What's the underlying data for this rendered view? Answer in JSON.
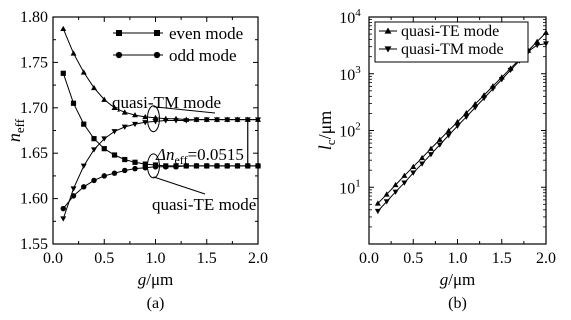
{
  "chart_data": [
    {
      "type": "line",
      "panel_label": "(a)",
      "ylabel": "n",
      "ylabel_sub": "eff",
      "xlabel": "g/μm",
      "xlim": [
        0.0,
        2.0
      ],
      "ylim": [
        1.55,
        1.8
      ],
      "xticks": [
        "0.0",
        "0.5",
        "1.0",
        "1.5",
        "2.0"
      ],
      "yticks": [
        "1.55",
        "1.60",
        "1.65",
        "1.70",
        "1.75",
        "1.80"
      ],
      "x": [
        0.1,
        0.2,
        0.3,
        0.4,
        0.5,
        0.6,
        0.7,
        0.8,
        0.9,
        1.0,
        1.1,
        1.2,
        1.3,
        1.4,
        1.5,
        1.6,
        1.7,
        1.8,
        1.9,
        2.0
      ],
      "legend": {
        "position": "top-right",
        "entries": [
          {
            "name": "even mode",
            "marker": "square"
          },
          {
            "name": "odd mode",
            "marker": "circle"
          }
        ]
      },
      "series": [
        {
          "group": "quasi-TM",
          "mode": "even",
          "marker": "triangle-up",
          "values": [
            1.787,
            1.76,
            1.739,
            1.722,
            1.709,
            1.7,
            1.695,
            1.692,
            1.69,
            1.689,
            1.688,
            1.688,
            1.687,
            1.687,
            1.687,
            1.687,
            1.687,
            1.687,
            1.687,
            1.687
          ]
        },
        {
          "group": "quasi-TM",
          "mode": "odd",
          "marker": "triangle-down",
          "values": [
            1.578,
            1.611,
            1.636,
            1.654,
            1.666,
            1.674,
            1.679,
            1.682,
            1.684,
            1.685,
            1.686,
            1.686,
            1.686,
            1.687,
            1.687,
            1.687,
            1.687,
            1.687,
            1.687,
            1.687
          ]
        },
        {
          "group": "quasi-TE",
          "mode": "even",
          "marker": "square",
          "values": [
            1.738,
            1.705,
            1.682,
            1.666,
            1.655,
            1.648,
            1.643,
            1.64,
            1.638,
            1.637,
            1.636,
            1.636,
            1.636,
            1.636,
            1.636,
            1.636,
            1.636,
            1.636,
            1.636,
            1.636
          ]
        },
        {
          "group": "quasi-TE",
          "mode": "odd",
          "marker": "circle",
          "values": [
            1.589,
            1.603,
            1.613,
            1.62,
            1.625,
            1.628,
            1.631,
            1.633,
            1.634,
            1.635,
            1.635,
            1.635,
            1.636,
            1.636,
            1.636,
            1.636,
            1.636,
            1.636,
            1.636,
            1.636
          ]
        }
      ],
      "annotations": {
        "tm_label": "quasi-TM mode",
        "te_label": "quasi-TE mode",
        "delta_prefix": "Δn",
        "delta_sub": "eff",
        "delta_value": "=0.0515",
        "delta_x": 1.9,
        "delta_bounds": [
          1.636,
          1.687
        ]
      }
    },
    {
      "type": "line",
      "panel_label": "(b)",
      "ylabel": "l",
      "ylabel_sub": "c",
      "ylabel_unit": "/μm",
      "xlabel": "g/μm",
      "yscale": "log",
      "xlim": [
        0.0,
        2.0
      ],
      "ylim": [
        1,
        10000
      ],
      "xticks": [
        "0.0",
        "0.5",
        "1.0",
        "1.5",
        "2.0"
      ],
      "yticks": [
        {
          "base": "10",
          "exp": "1",
          "value": 10
        },
        {
          "base": "10",
          "exp": "2",
          "value": 100
        },
        {
          "base": "10",
          "exp": "3",
          "value": 1000
        },
        {
          "base": "10",
          "exp": "4",
          "value": 10000
        }
      ],
      "x": [
        0.1,
        0.2,
        0.3,
        0.4,
        0.5,
        0.6,
        0.7,
        0.8,
        0.9,
        1.0,
        1.1,
        1.2,
        1.3,
        1.4,
        1.5,
        1.6,
        1.7,
        1.8,
        1.9,
        2.0
      ],
      "legend": {
        "position": "top-left"
      },
      "series": [
        {
          "name": "quasi-TE mode",
          "marker": "triangle-up",
          "values": [
            5.2,
            7.5,
            11,
            16,
            23,
            33,
            48,
            69,
            99,
            142,
            204,
            293,
            421,
            605,
            868,
            1246,
            1790,
            2570,
            3690,
            5300
          ]
        },
        {
          "name": "quasi-TM mode",
          "marker": "triangle-down",
          "values": [
            3.8,
            5.6,
            8.3,
            12,
            18,
            26,
            38,
            56,
            82,
            120,
            174,
            254,
            372,
            543,
            794,
            1161,
            1697,
            2480,
            3200,
            3400
          ]
        }
      ]
    }
  ]
}
